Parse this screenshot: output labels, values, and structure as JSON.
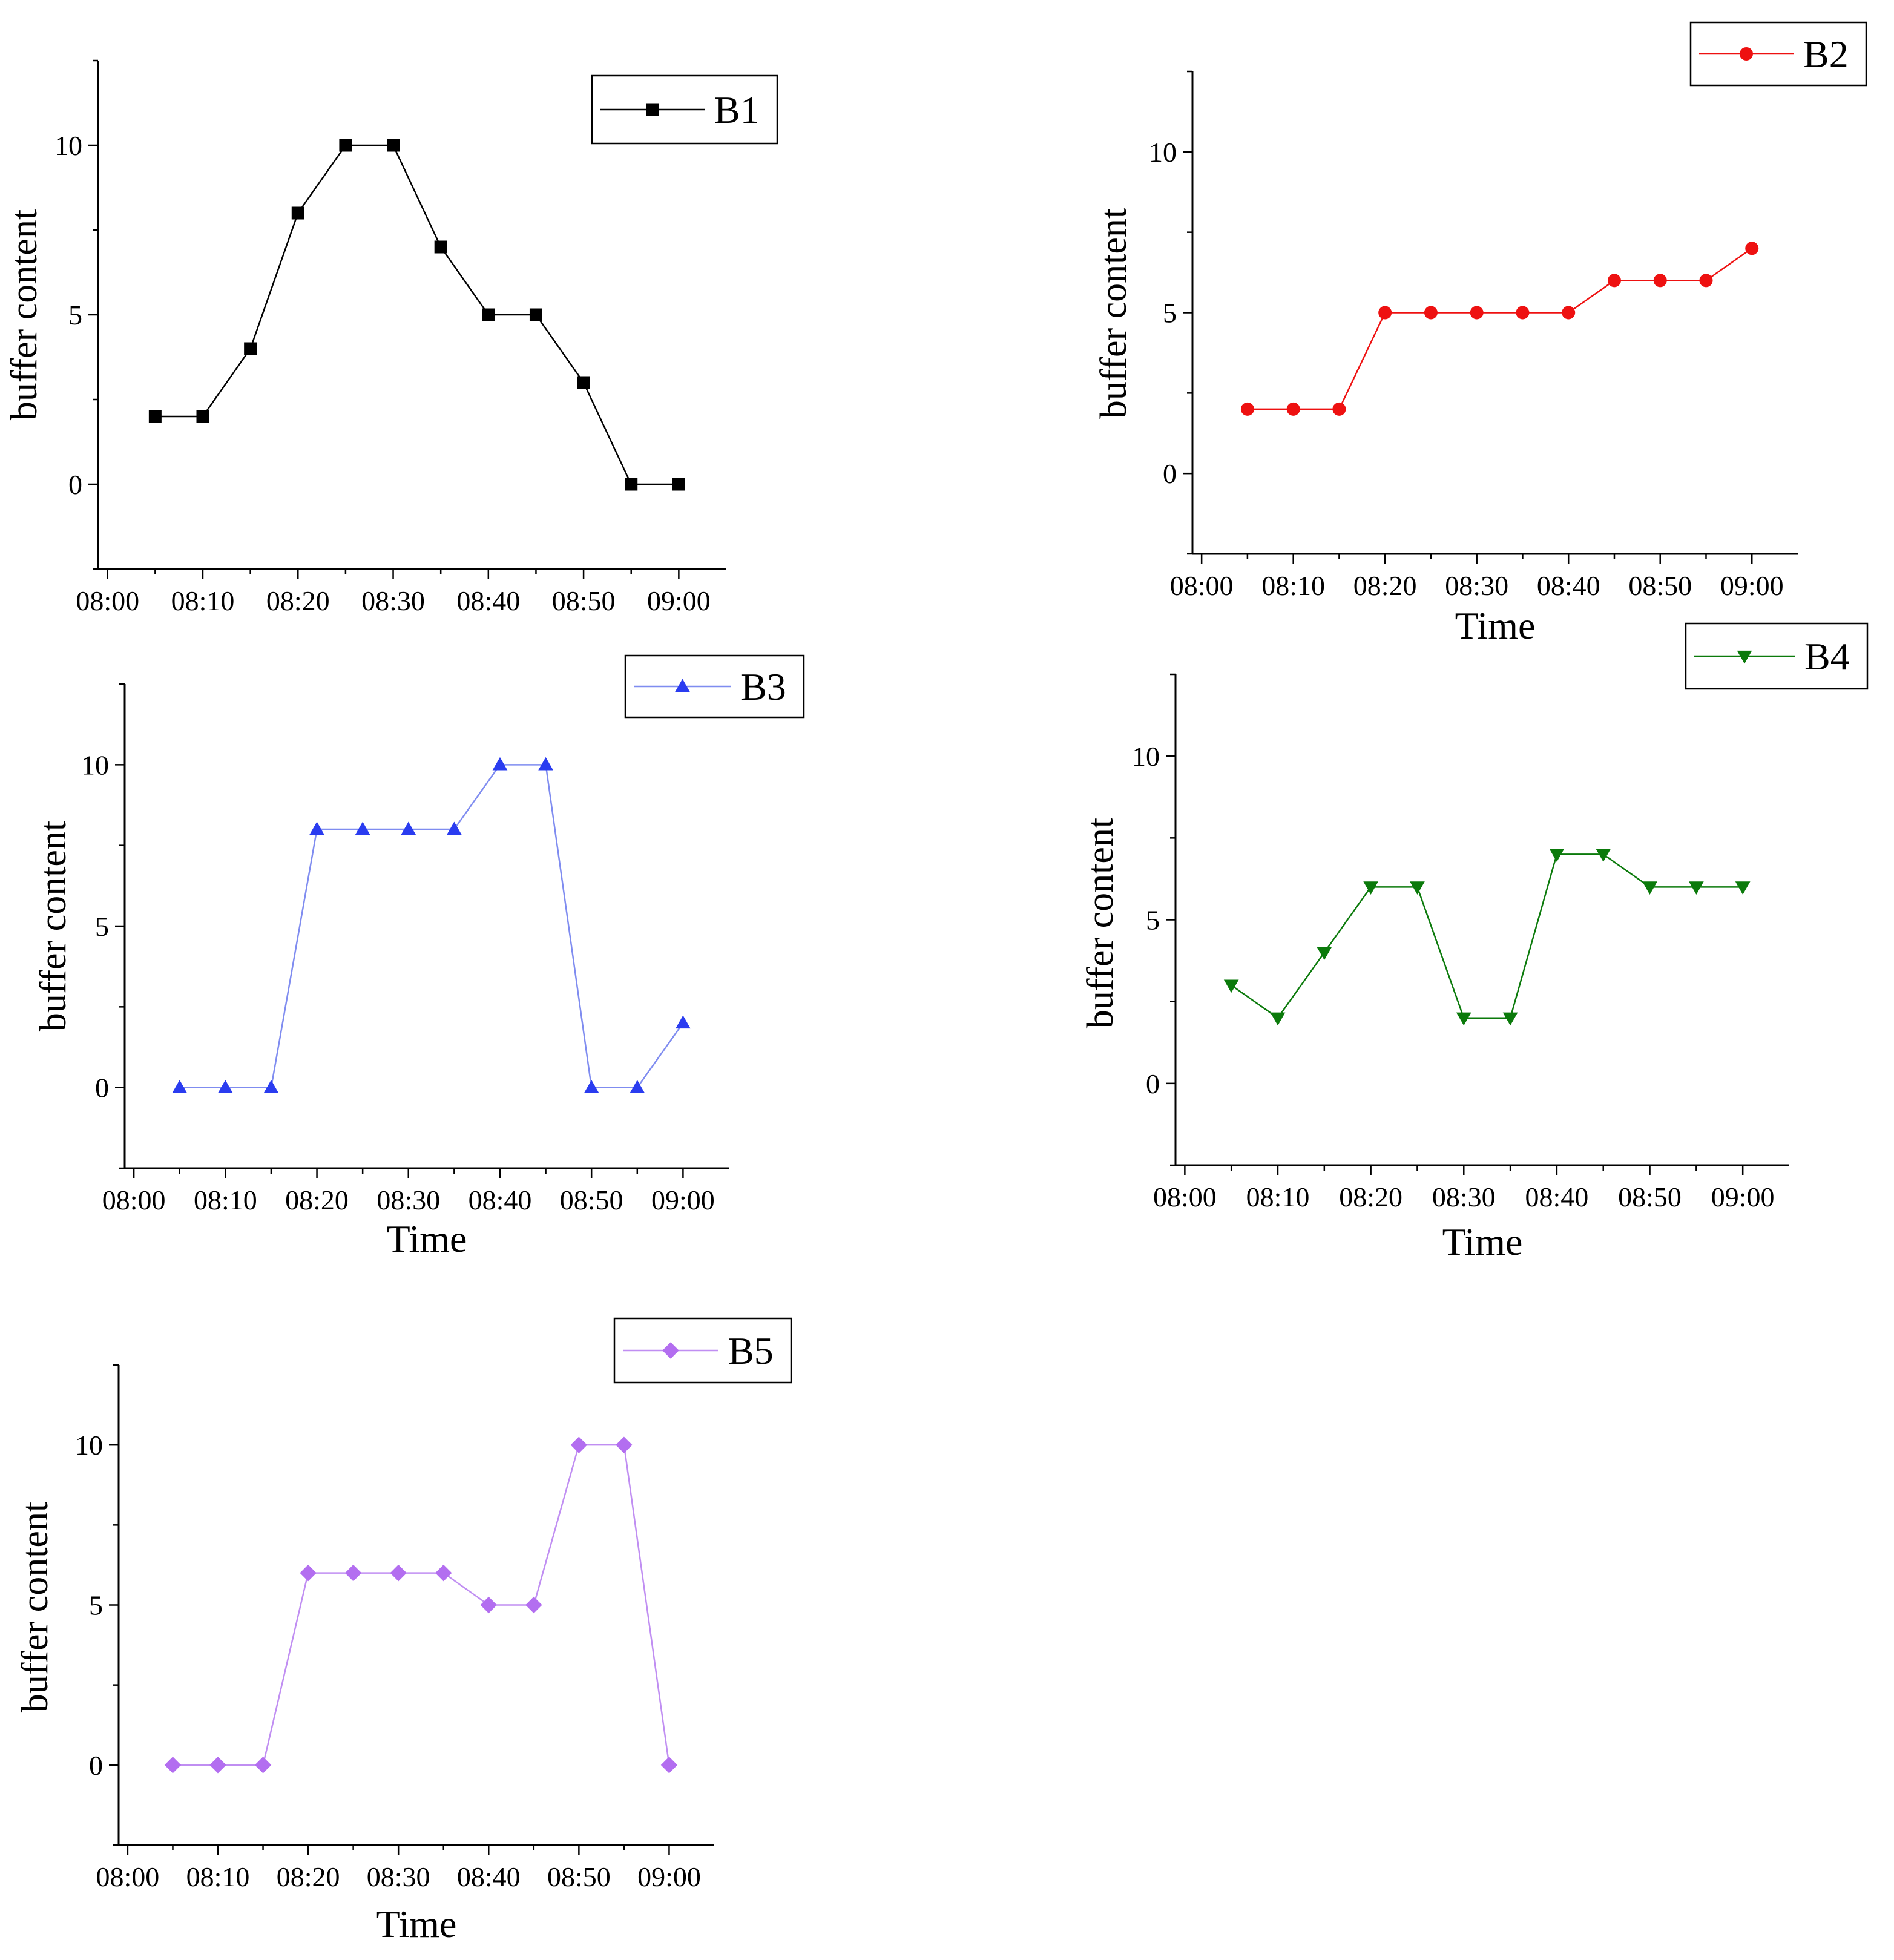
{
  "chart_data": [
    {
      "type": "line",
      "ylabel": "buffer content",
      "xlabel": "",
      "x_ticks": [
        "08:00",
        "08:10",
        "08:20",
        "08:30",
        "08:40",
        "08:50",
        "09:00"
      ],
      "y_ticks": [
        "0",
        "5",
        "10"
      ],
      "xlim": [
        "07:59",
        "09:05"
      ],
      "ylim": [
        -2.5,
        12.5
      ],
      "series": [
        {
          "name": "B1",
          "color": "#000000",
          "marker": "square",
          "x": [
            "08:05",
            "08:10",
            "08:15",
            "08:20",
            "08:25",
            "08:30",
            "08:35",
            "08:40",
            "08:45",
            "08:50",
            "08:55",
            "09:00"
          ],
          "y": [
            2,
            2,
            4,
            8,
            10,
            10,
            7,
            5,
            5,
            3,
            0,
            0
          ]
        }
      ],
      "legend_position": "top-right"
    },
    {
      "type": "line",
      "ylabel": "buffer content",
      "xlabel": "Time",
      "x_ticks": [
        "08:00",
        "08:10",
        "08:20",
        "08:30",
        "08:40",
        "08:50",
        "09:00"
      ],
      "y_ticks": [
        "0",
        "5",
        "10"
      ],
      "xlim": [
        "07:59",
        "09:05"
      ],
      "ylim": [
        -2.5,
        12.5
      ],
      "series": [
        {
          "name": "B2",
          "color": "#ee1111",
          "marker": "circle",
          "x": [
            "08:05",
            "08:10",
            "08:15",
            "08:20",
            "08:25",
            "08:30",
            "08:35",
            "08:40",
            "08:45",
            "08:50",
            "08:55",
            "09:00"
          ],
          "y": [
            2,
            2,
            2,
            5,
            5,
            5,
            5,
            5,
            6,
            6,
            6,
            7
          ]
        }
      ],
      "legend_position": "top-right"
    },
    {
      "type": "line",
      "ylabel": "buffer content",
      "xlabel": "Time",
      "x_ticks": [
        "08:00",
        "08:10",
        "08:20",
        "08:30",
        "08:40",
        "08:50",
        "09:00"
      ],
      "y_ticks": [
        "0",
        "5",
        "10"
      ],
      "xlim": [
        "07:59",
        "09:05"
      ],
      "ylim": [
        -2.5,
        12.5
      ],
      "series": [
        {
          "name": "B3",
          "color": "#2a3cf0",
          "line_color": "#7f8cf0",
          "marker": "triangle-up",
          "x": [
            "08:05",
            "08:10",
            "08:15",
            "08:20",
            "08:25",
            "08:30",
            "08:35",
            "08:40",
            "08:45",
            "08:50",
            "08:55",
            "09:00"
          ],
          "y": [
            0,
            0,
            0,
            8,
            8,
            8,
            8,
            10,
            10,
            0,
            0,
            2
          ]
        }
      ],
      "legend_position": "top-right"
    },
    {
      "type": "line",
      "ylabel": "buffer content",
      "xlabel": "Time",
      "x_ticks": [
        "08:00",
        "08:10",
        "08:20",
        "08:30",
        "08:40",
        "08:50",
        "09:00"
      ],
      "y_ticks": [
        "0",
        "5",
        "10"
      ],
      "xlim": [
        "07:59",
        "09:05"
      ],
      "ylim": [
        -2.5,
        12.5
      ],
      "series": [
        {
          "name": "B4",
          "color": "#0b7a0b",
          "marker": "triangle-down",
          "x": [
            "08:05",
            "08:10",
            "08:15",
            "08:20",
            "08:25",
            "08:30",
            "08:35",
            "08:40",
            "08:45",
            "08:50",
            "08:55",
            "09:00"
          ],
          "y": [
            3,
            2,
            4,
            6,
            6,
            2,
            2,
            7,
            7,
            6,
            6,
            6
          ]
        }
      ],
      "legend_position": "top-right"
    },
    {
      "type": "line",
      "ylabel": "buffer content",
      "xlabel": "Time",
      "x_ticks": [
        "08:00",
        "08:10",
        "08:20",
        "08:30",
        "08:40",
        "08:50",
        "09:00"
      ],
      "y_ticks": [
        "0",
        "5",
        "10"
      ],
      "xlim": [
        "07:59",
        "09:05"
      ],
      "ylim": [
        -2.5,
        12.5
      ],
      "series": [
        {
          "name": "B5",
          "color": "#b36ef0",
          "line_color": "#c08ef2",
          "marker": "diamond",
          "x": [
            "08:05",
            "08:10",
            "08:15",
            "08:20",
            "08:25",
            "08:30",
            "08:35",
            "08:40",
            "08:45",
            "08:50",
            "08:55",
            "09:00"
          ],
          "y": [
            0,
            0,
            0,
            6,
            6,
            6,
            6,
            5,
            5,
            10,
            10,
            0
          ]
        }
      ],
      "legend_position": "top-right"
    }
  ]
}
